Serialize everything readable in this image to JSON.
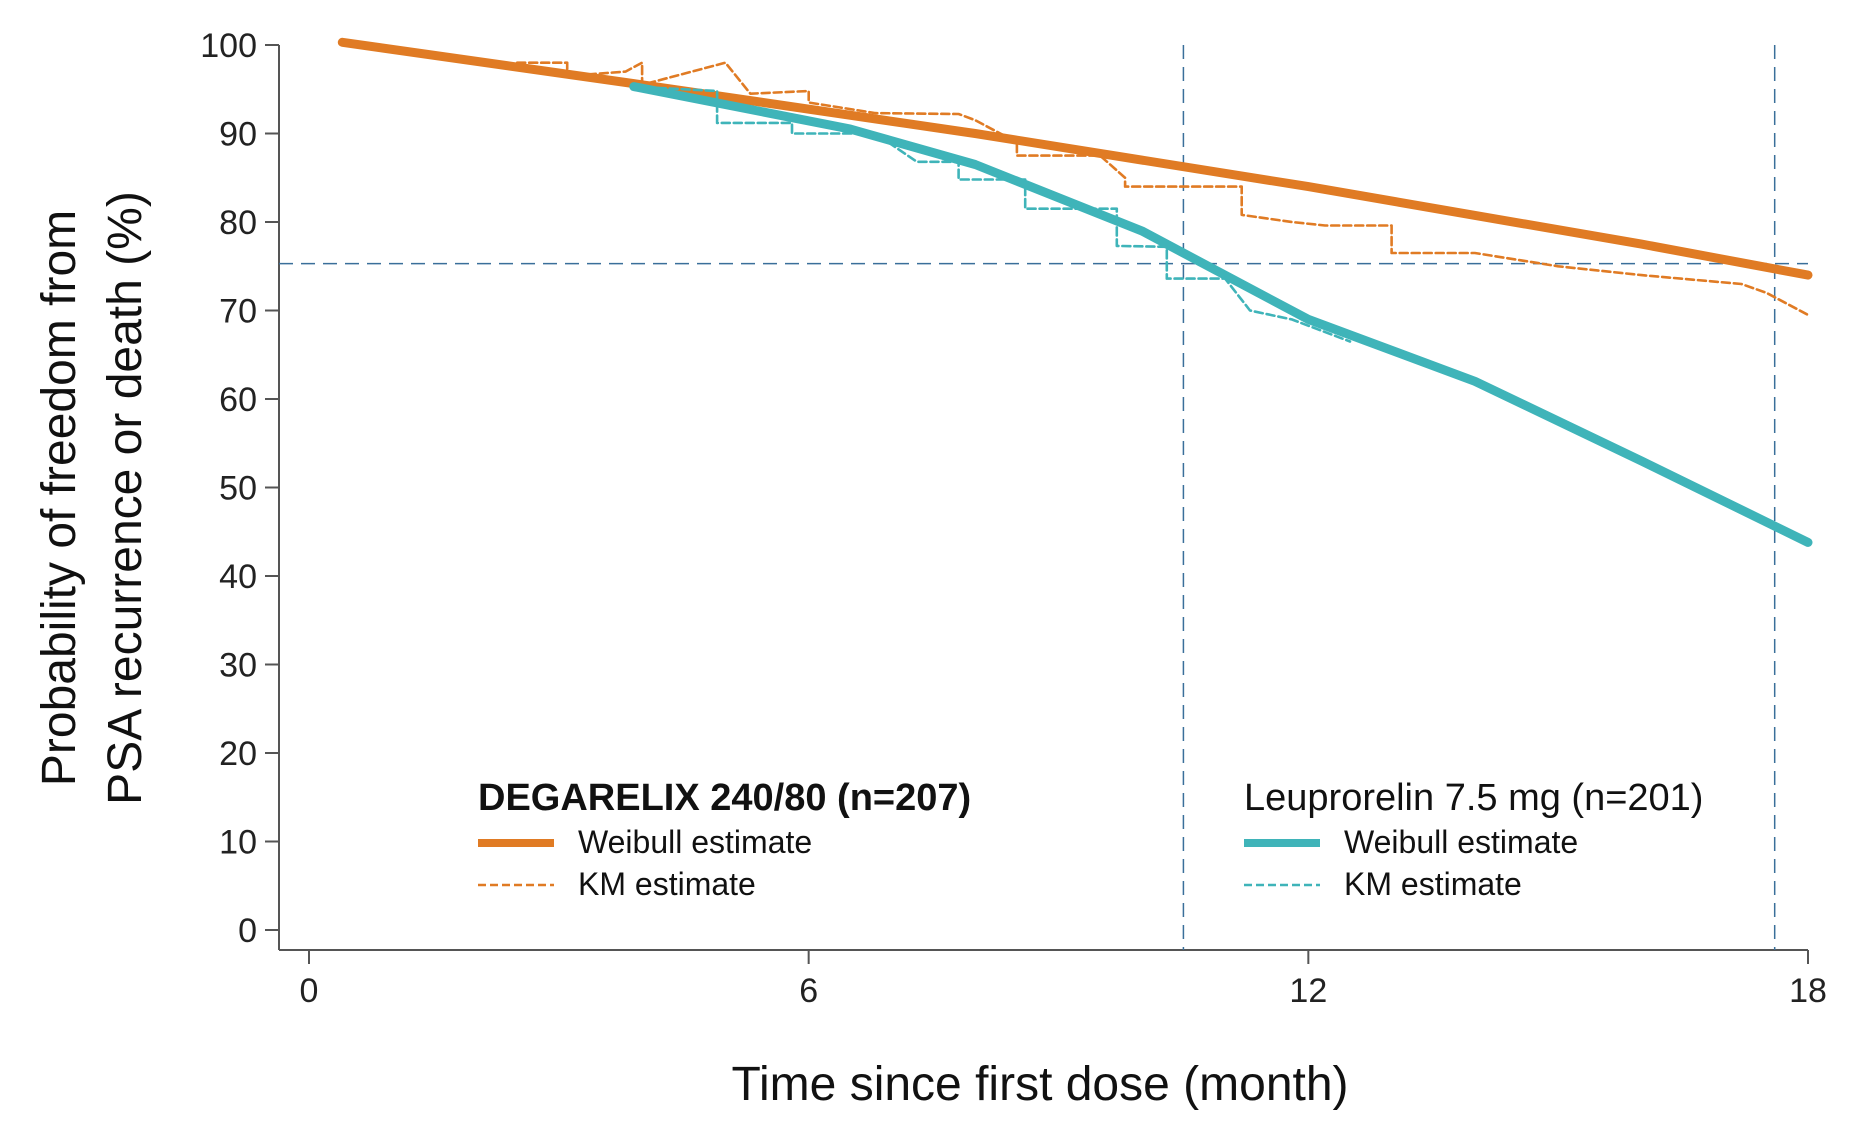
{
  "chart_data": {
    "type": "line",
    "title": "",
    "xlabel": "Time since first dose (month)",
    "ylabel_line1": "Probability of freedom from",
    "ylabel_line2": "PSA recurrence or death (%)",
    "xlim": [
      -0.4,
      18
    ],
    "ylim": [
      -2,
      100
    ],
    "x_ticks": [
      0,
      6,
      12,
      18
    ],
    "y_ticks": [
      0,
      10,
      20,
      30,
      40,
      50,
      60,
      70,
      80,
      90,
      100
    ],
    "grid": false,
    "reference_lines": {
      "horizontal_y": 75.3,
      "vertical_x": [
        10.5,
        17.6
      ]
    },
    "groups": [
      {
        "title": "DEGARELIX  240/80 (n=207)",
        "title_bold": true,
        "color": "#e07b24"
      },
      {
        "title": "Leuprorelin 7.5 mg (n=201)",
        "title_bold": false,
        "color": "#3fb4b9"
      }
    ],
    "series": [
      {
        "name": "Weibull estimate",
        "group": 0,
        "style": "solid",
        "color": "#e07b24",
        "points": [
          [
            0.4,
            100.3
          ],
          [
            4.0,
            95.5
          ],
          [
            8.0,
            90.0
          ],
          [
            12.0,
            84.0
          ],
          [
            16.0,
            77.5
          ],
          [
            18.0,
            74.0
          ]
        ]
      },
      {
        "name": "KM estimate",
        "group": 0,
        "style": "dashed",
        "color": "#e07b24",
        "points": [
          [
            2.5,
            98.0
          ],
          [
            3.1,
            98.0
          ],
          [
            3.1,
            96.5
          ],
          [
            3.8,
            97.0
          ],
          [
            4.0,
            98.0
          ],
          [
            4.0,
            95.5
          ],
          [
            5.0,
            98.0
          ],
          [
            5.3,
            94.5
          ],
          [
            6.0,
            94.8
          ],
          [
            6.0,
            93.5
          ],
          [
            6.8,
            92.3
          ],
          [
            7.8,
            92.2
          ],
          [
            8.0,
            91.5
          ],
          [
            8.5,
            89.0
          ],
          [
            8.5,
            87.5
          ],
          [
            9.5,
            87.5
          ],
          [
            9.8,
            85.0
          ],
          [
            9.8,
            84.0
          ],
          [
            11.2,
            84.0
          ],
          [
            11.2,
            80.8
          ],
          [
            11.8,
            80.0
          ],
          [
            12.2,
            79.6
          ],
          [
            13.0,
            79.6
          ],
          [
            13.0,
            76.5
          ],
          [
            14.0,
            76.5
          ],
          [
            15.0,
            75.0
          ],
          [
            16.0,
            74.0
          ],
          [
            17.2,
            73.0
          ],
          [
            17.5,
            72.0
          ],
          [
            18.0,
            69.5
          ]
        ]
      },
      {
        "name": "Weibull estimate",
        "group": 1,
        "style": "solid",
        "color": "#3fb4b9",
        "points": [
          [
            3.9,
            95.3
          ],
          [
            6.5,
            90.5
          ],
          [
            8.0,
            86.5
          ],
          [
            10.0,
            79.0
          ],
          [
            12.0,
            69.0
          ],
          [
            14.0,
            62.0
          ],
          [
            16.0,
            53.0
          ],
          [
            18.0,
            43.8
          ]
        ]
      },
      {
        "name": "KM estimate",
        "group": 1,
        "style": "dashed",
        "color": "#3fb4b9",
        "points": [
          [
            3.9,
            95.3
          ],
          [
            4.9,
            94.8
          ],
          [
            4.9,
            91.2
          ],
          [
            5.8,
            91.2
          ],
          [
            5.8,
            90.0
          ],
          [
            6.8,
            90.0
          ],
          [
            7.3,
            86.8
          ],
          [
            7.8,
            86.8
          ],
          [
            7.8,
            84.8
          ],
          [
            8.6,
            84.8
          ],
          [
            8.6,
            81.5
          ],
          [
            9.7,
            81.5
          ],
          [
            9.7,
            77.3
          ],
          [
            10.3,
            77.2
          ],
          [
            10.3,
            73.6
          ],
          [
            11.0,
            73.6
          ],
          [
            11.3,
            70.0
          ],
          [
            11.8,
            69.0
          ],
          [
            12.5,
            66.5
          ]
        ]
      }
    ]
  }
}
